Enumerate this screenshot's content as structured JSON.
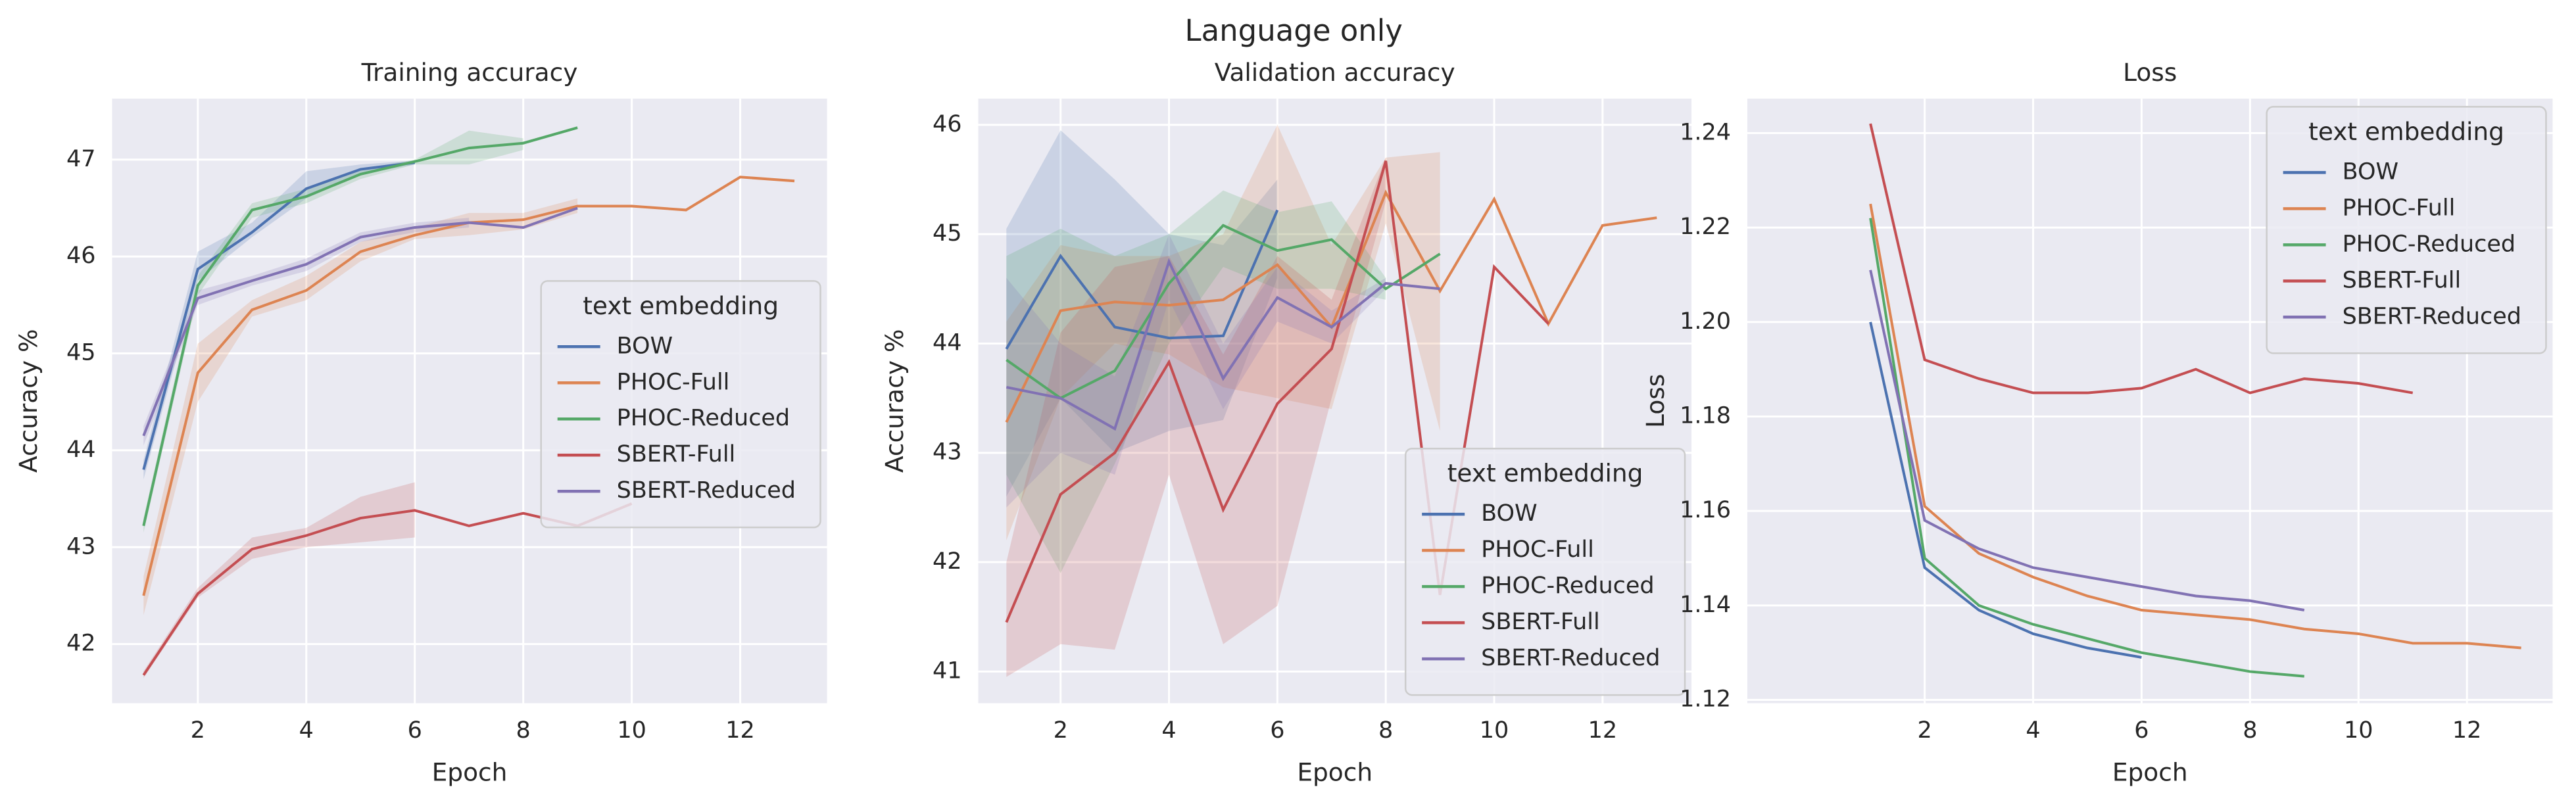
{
  "title": "Language only",
  "chart_data": [
    {
      "type": "line",
      "title": "Training accuracy",
      "x_label": "Epoch",
      "y_label": "Accuracy %",
      "xlim": [
        0.42,
        13.6
      ],
      "ylim": [
        41.39,
        47.63
      ],
      "xticks": [
        2,
        4,
        6,
        8,
        10,
        12
      ],
      "yticks": [
        42,
        43,
        44,
        45,
        46,
        47
      ],
      "grid": true,
      "legend": "center right",
      "legend_title": "text embedding",
      "series": [
        {
          "name": "BOW",
          "color": "#4c72b0",
          "x": [
            1,
            2,
            3,
            4,
            5,
            6
          ],
          "values": [
            43.8,
            45.87,
            46.25,
            46.7,
            46.9,
            46.97
          ],
          "lower": [
            43.7,
            45.75,
            46.2,
            46.6,
            46.85,
            46.95
          ],
          "upper": [
            43.9,
            46.05,
            46.35,
            46.88,
            46.95,
            46.99
          ]
        },
        {
          "name": "PHOC-Full",
          "color": "#dd8452",
          "x": [
            1,
            2,
            3,
            4,
            5,
            6,
            7,
            8,
            9,
            10,
            11,
            12,
            13
          ],
          "values": [
            42.5,
            44.8,
            45.45,
            45.65,
            46.05,
            46.22,
            46.35,
            46.38,
            46.52,
            46.52,
            46.48,
            46.82,
            46.78
          ],
          "lower": [
            42.3,
            44.5,
            45.38,
            45.55,
            45.95,
            46.18,
            46.22,
            46.28,
            46.45,
            null,
            null,
            null,
            null
          ],
          "upper": [
            42.7,
            45.1,
            45.55,
            45.8,
            46.15,
            46.3,
            46.45,
            46.45,
            46.6,
            null,
            null,
            null,
            null
          ]
        },
        {
          "name": "PHOC-Reduced",
          "color": "#55a868",
          "x": [
            1,
            2,
            3,
            4,
            5,
            6,
            7,
            8,
            9
          ],
          "values": [
            43.22,
            45.7,
            46.48,
            46.62,
            46.85,
            46.98,
            47.12,
            47.17,
            47.33
          ],
          "lower": [
            43.15,
            45.6,
            46.4,
            46.55,
            46.8,
            46.95,
            46.95,
            47.1,
            null
          ],
          "upper": [
            43.3,
            45.8,
            46.55,
            46.7,
            46.9,
            47.0,
            47.3,
            47.22,
            null
          ]
        },
        {
          "name": "SBERT-Full",
          "color": "#c44e52",
          "x": [
            1,
            2,
            3,
            4,
            5,
            6,
            7,
            8,
            9,
            10
          ],
          "values": [
            41.68,
            42.52,
            42.98,
            43.12,
            43.3,
            43.38,
            43.22,
            43.35,
            43.22,
            43.45
          ],
          "lower": [
            41.65,
            42.48,
            42.88,
            43.0,
            43.05,
            43.1,
            null,
            null,
            null,
            null
          ],
          "upper": [
            41.72,
            42.58,
            43.1,
            43.2,
            43.52,
            43.67,
            null,
            null,
            null,
            null
          ]
        },
        {
          "name": "SBERT-Reduced",
          "color": "#8172b3",
          "x": [
            1,
            2,
            3,
            4,
            5,
            6,
            7,
            8,
            9
          ],
          "values": [
            44.15,
            45.57,
            45.75,
            45.92,
            46.2,
            46.3,
            46.35,
            46.3,
            46.5
          ],
          "lower": [
            44.05,
            45.5,
            45.7,
            45.85,
            46.15,
            46.25,
            46.3,
            null,
            null
          ],
          "upper": [
            44.25,
            45.65,
            45.8,
            45.98,
            46.25,
            46.35,
            46.4,
            null,
            null
          ]
        }
      ]
    },
    {
      "type": "line",
      "title": "Validation accuracy",
      "x_label": "Epoch",
      "y_label": "Accuracy %",
      "xlim": [
        0.48,
        13.64
      ],
      "ylim": [
        40.71,
        46.24
      ],
      "xticks": [
        2,
        4,
        6,
        8,
        10,
        12
      ],
      "yticks": [
        41,
        42,
        43,
        44,
        45,
        46
      ],
      "grid": true,
      "legend": "lower right",
      "legend_title": "text embedding",
      "series": [
        {
          "name": "BOW",
          "color": "#4c72b0",
          "x": [
            1,
            2,
            3,
            4,
            5,
            6
          ],
          "values": [
            43.95,
            44.8,
            44.15,
            44.05,
            44.07,
            45.22
          ],
          "lower": [
            42.6,
            43.5,
            43.0,
            43.2,
            43.3,
            44.6
          ],
          "upper": [
            45.05,
            45.95,
            45.5,
            45.0,
            44.9,
            45.5
          ]
        },
        {
          "name": "PHOC-Full",
          "color": "#dd8452",
          "x": [
            1,
            2,
            3,
            4,
            5,
            6,
            7,
            8,
            9,
            10,
            11,
            12,
            13
          ],
          "values": [
            43.28,
            44.3,
            44.38,
            44.35,
            44.4,
            44.72,
            44.15,
            45.38,
            44.48,
            45.32,
            44.18,
            45.08,
            45.15
          ],
          "lower": [
            42.2,
            43.5,
            44.0,
            43.9,
            43.6,
            43.5,
            43.4,
            45.1,
            43.2,
            null,
            null,
            null,
            null
          ],
          "upper": [
            44.2,
            44.9,
            44.8,
            44.8,
            45.0,
            46.0,
            44.9,
            45.7,
            45.75,
            null,
            null,
            null,
            null
          ]
        },
        {
          "name": "PHOC-Reduced",
          "color": "#55a868",
          "x": [
            1,
            2,
            3,
            4,
            5,
            6,
            7,
            8,
            9
          ],
          "values": [
            43.85,
            43.5,
            43.75,
            44.55,
            45.08,
            44.85,
            44.95,
            44.5,
            44.82
          ],
          "lower": [
            42.8,
            41.9,
            42.9,
            44.0,
            44.7,
            44.5,
            44.5,
            44.4,
            null
          ],
          "upper": [
            44.8,
            45.05,
            44.8,
            45.0,
            45.4,
            45.2,
            45.3,
            44.6,
            null
          ]
        },
        {
          "name": "SBERT-Full",
          "color": "#c44e52",
          "x": [
            1,
            2,
            3,
            4,
            5,
            6,
            7,
            8,
            9,
            10,
            11
          ],
          "values": [
            41.45,
            42.62,
            43.0,
            43.83,
            42.48,
            43.45,
            43.95,
            45.67,
            41.7,
            44.7,
            44.18
          ],
          "lower": [
            40.95,
            41.25,
            41.2,
            42.8,
            41.25,
            41.6,
            43.5,
            45.3,
            null,
            null,
            null
          ],
          "upper": [
            42.0,
            44.1,
            44.7,
            44.8,
            43.9,
            44.8,
            44.4,
            45.7,
            null,
            null,
            null
          ]
        },
        {
          "name": "SBERT-Reduced",
          "color": "#8172b3",
          "x": [
            1,
            2,
            3,
            4,
            5,
            6,
            7,
            8,
            9
          ],
          "values": [
            43.6,
            43.5,
            43.22,
            44.75,
            43.68,
            44.42,
            44.15,
            44.55,
            44.5
          ],
          "lower": [
            42.5,
            43.0,
            42.8,
            44.4,
            43.4,
            44.2,
            44.0,
            44.5,
            null
          ],
          "upper": [
            44.6,
            44.0,
            43.7,
            45.0,
            44.0,
            44.7,
            44.3,
            44.6,
            null
          ]
        }
      ]
    },
    {
      "type": "line",
      "title": "Loss",
      "x_label": "Epoch",
      "y_label": "Loss",
      "xlim": [
        -1.27,
        13.58
      ],
      "ylim": [
        1.1193,
        1.2473
      ],
      "xticks": [
        2,
        4,
        6,
        8,
        10,
        12
      ],
      "yticks": [
        1.12,
        1.14,
        1.16,
        1.18,
        {
          "value": 1.2,
          "label": "1.20"
        },
        1.22,
        1.24
      ],
      "grid": true,
      "legend": "upper right",
      "legend_title": "text embedding",
      "series": [
        {
          "name": "BOW",
          "color": "#4c72b0",
          "x": [
            1,
            2,
            3,
            4,
            5,
            6
          ],
          "values": [
            1.2,
            1.148,
            1.139,
            1.134,
            1.131,
            1.129
          ]
        },
        {
          "name": "PHOC-Full",
          "color": "#dd8452",
          "x": [
            1,
            2,
            3,
            4,
            5,
            6,
            7,
            8,
            9,
            10,
            11,
            12,
            13
          ],
          "values": [
            1.225,
            1.161,
            1.151,
            1.146,
            1.142,
            1.139,
            1.138,
            1.137,
            1.135,
            1.134,
            1.132,
            1.132,
            1.131
          ]
        },
        {
          "name": "PHOC-Reduced",
          "color": "#55a868",
          "x": [
            1,
            2,
            3,
            4,
            5,
            6,
            7,
            8,
            9
          ],
          "values": [
            1.222,
            1.15,
            1.14,
            1.136,
            1.133,
            1.13,
            1.128,
            1.126,
            1.125
          ]
        },
        {
          "name": "SBERT-Full",
          "color": "#c44e52",
          "x": [
            1,
            2,
            3,
            4,
            5,
            6,
            7,
            8,
            9,
            10,
            11
          ],
          "values": [
            1.242,
            1.192,
            1.188,
            1.185,
            1.185,
            1.186,
            1.19,
            1.185,
            1.188,
            1.187,
            1.185
          ]
        },
        {
          "name": "SBERT-Reduced",
          "color": "#8172b3",
          "x": [
            1,
            2,
            3,
            4,
            5,
            6,
            7,
            8,
            9
          ],
          "values": [
            1.211,
            1.158,
            1.152,
            1.148,
            1.146,
            1.144,
            1.142,
            1.141,
            1.139
          ]
        }
      ]
    }
  ]
}
